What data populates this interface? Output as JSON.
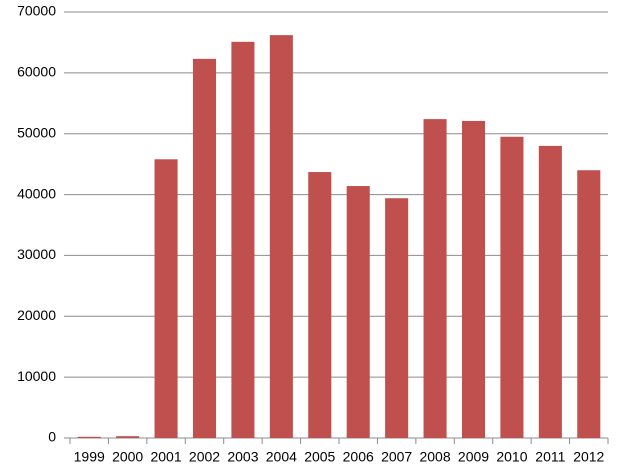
{
  "chart_data": {
    "type": "bar",
    "categories": [
      "1999",
      "2000",
      "2001",
      "2002",
      "2003",
      "2004",
      "2005",
      "2006",
      "2007",
      "2008",
      "2009",
      "2010",
      "2011",
      "2012"
    ],
    "values": [
      200,
      300,
      45800,
      62300,
      65100,
      66200,
      43700,
      41400,
      39400,
      52400,
      52100,
      49500,
      48000,
      44000
    ],
    "color": "#c0504d",
    "ylim": [
      0,
      70000
    ],
    "yticks": [
      0,
      10000,
      20000,
      30000,
      40000,
      50000,
      60000,
      70000
    ],
    "grid": true
  }
}
